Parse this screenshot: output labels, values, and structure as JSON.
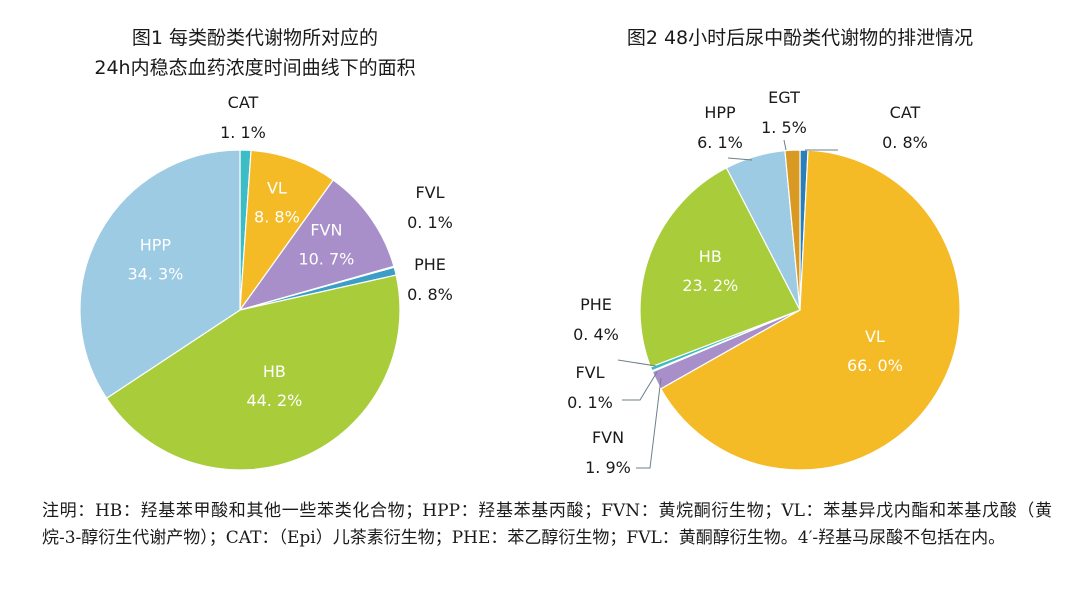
{
  "chart_data": [
    {
      "type": "pie",
      "title_lines": [
        "图1  每类酚类代谢物所对应的",
        "24h内稳态血药浓度时间曲线下的面积"
      ],
      "slices": [
        {
          "name": "CAT",
          "value": 1.1,
          "label": "1. 1%",
          "color": "#3cbcc4"
        },
        {
          "name": "VL",
          "value": 8.8,
          "label": "8. 8%",
          "color": "#f4bb26"
        },
        {
          "name": "FVN",
          "value": 10.7,
          "label": "10. 7%",
          "color": "#a98fc9"
        },
        {
          "name": "FVL",
          "value": 0.1,
          "label": "0. 1%",
          "color": "#2b7fb8"
        },
        {
          "name": "PHE",
          "value": 0.8,
          "label": "0. 8%",
          "color": "#3a9ec6"
        },
        {
          "name": "HB",
          "value": 44.2,
          "label": "44. 2%",
          "color": "#a9cc3a"
        },
        {
          "name": "HPP",
          "value": 34.3,
          "label": "34. 3%",
          "color": "#9ccbe3"
        }
      ]
    },
    {
      "type": "pie",
      "title_lines": [
        "图2  48小时后尿中酚类代谢物的排泄情况"
      ],
      "slices": [
        {
          "name": "CAT",
          "value": 0.8,
          "label": "0. 8%",
          "color": "#2b7fb8"
        },
        {
          "name": "VL",
          "value": 66.0,
          "label": "66. 0%",
          "color": "#f4bb26"
        },
        {
          "name": "FVN",
          "value": 1.9,
          "label": "1. 9%",
          "color": "#a98fc9"
        },
        {
          "name": "FVL",
          "value": 0.1,
          "label": "0. 1%",
          "color": "#2b7fb8"
        },
        {
          "name": "PHE",
          "value": 0.4,
          "label": "0. 4%",
          "color": "#3cbcc4"
        },
        {
          "name": "HB",
          "value": 23.2,
          "label": "23. 2%",
          "color": "#a9cc3a"
        },
        {
          "name": "HPP",
          "value": 6.1,
          "label": "6. 1%",
          "color": "#9ccbe3"
        },
        {
          "name": "EGT",
          "value": 1.5,
          "label": "1. 5%",
          "color": "#d89a22"
        }
      ]
    }
  ],
  "note": "注明：HB：羟基苯甲酸和其他一些苯类化合物；HPP：羟基苯基丙酸；FVN：黄烷酮衍生物；VL：苯基异戊内酯和苯基戊酸（黄烷-3-醇衍生代谢产物）；CAT：（Epi）儿茶素衍生物；PHE：苯乙醇衍生物；FVL：黄酮醇衍生物。4′-羟基马尿酸不包括在内。",
  "colors": {
    "text_inside": "#ffffff",
    "text_outside": "#1a1a1a",
    "leader": "#6e7f8a"
  }
}
